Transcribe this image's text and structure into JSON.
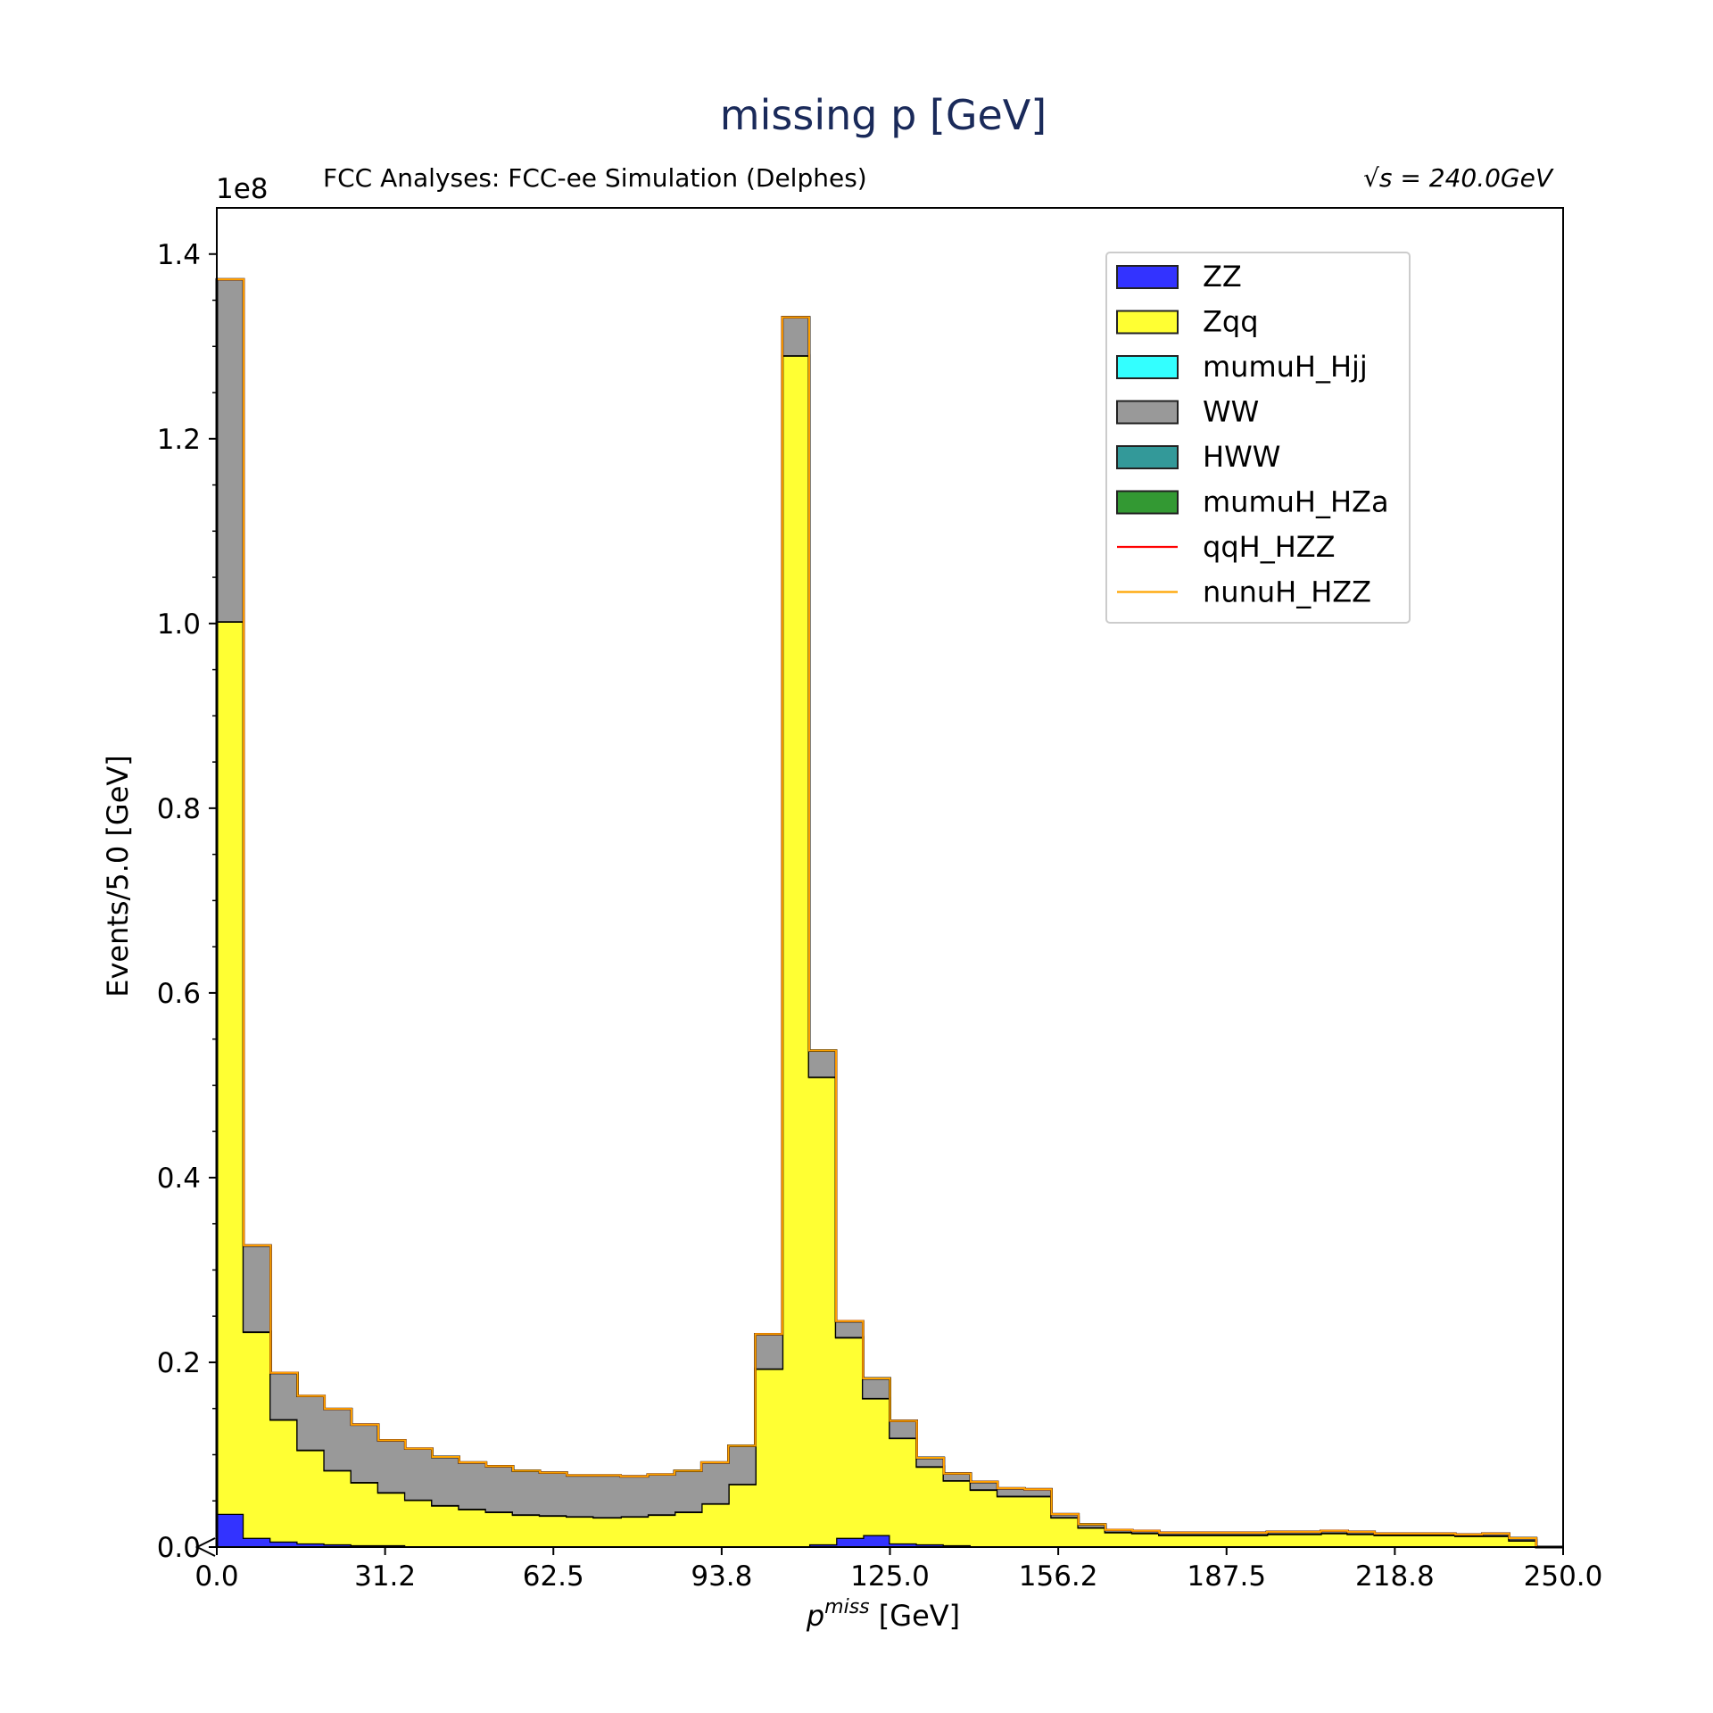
{
  "chart_data": {
    "type": "bar",
    "title": "missing p [GeV]",
    "subtitle_left": "FCC Analyses: FCC-ee Simulation (Delphes)",
    "subtitle_right": "√s = 240.0GeV",
    "xlabel": "p^miss [GeV]",
    "xlabel_main": "p",
    "xlabel_sup": "miss",
    "xlabel_unit": " [GeV]",
    "ylabel": "Events/5.0 [GeV]",
    "y_offset_text": "1e8",
    "stacked": true,
    "bin_width": 5.0,
    "xlim": [
      0.0,
      250.0
    ],
    "ylim": [
      0.0,
      1.45
    ],
    "x_ticks": [
      "0.0",
      "31.2",
      "62.5",
      "93.8",
      "125.0",
      "156.2",
      "187.5",
      "218.8",
      "250.0"
    ],
    "x_tick_values": [
      0.0,
      31.25,
      62.5,
      93.75,
      125.0,
      156.25,
      187.5,
      218.75,
      250.0
    ],
    "y_ticks": [
      "0.0",
      "0.2",
      "0.4",
      "0.6",
      "0.8",
      "1.0",
      "1.2",
      "1.4"
    ],
    "y_tick_values": [
      0.0,
      0.2,
      0.4,
      0.6,
      0.8,
      1.0,
      1.2,
      1.4
    ],
    "bin_edges": [
      0,
      5,
      10,
      15,
      20,
      25,
      30,
      35,
      40,
      45,
      50,
      55,
      60,
      65,
      70,
      75,
      80,
      85,
      90,
      95,
      100,
      105,
      110,
      115,
      120,
      125,
      130,
      135,
      140,
      145,
      150,
      155,
      160,
      165,
      170,
      175,
      180,
      185,
      190,
      195,
      200,
      205,
      210,
      215,
      220,
      225,
      230,
      235,
      240,
      245,
      250
    ],
    "legend_position": "upper right",
    "series": [
      {
        "name": "ZZ",
        "color": "#3333ff",
        "style": "fill",
        "values": [
          0.036,
          0.01,
          0.006,
          0.004,
          0.003,
          0.002,
          0.002,
          0.001,
          0.001,
          0.001,
          0.001,
          0.001,
          0.001,
          0.001,
          0.001,
          0.001,
          0.001,
          0.001,
          0.001,
          0.001,
          0.001,
          0.001,
          0.003,
          0.01,
          0.013,
          0.004,
          0.003,
          0.002,
          0.001,
          0.001,
          0.001,
          0.001,
          0.001,
          0.001,
          0.001,
          0.001,
          0.001,
          0.001,
          0.001,
          0.001,
          0.001,
          0.001,
          0.001,
          0.001,
          0.001,
          0.001,
          0.001,
          0.001,
          0.001,
          0.0
        ]
      },
      {
        "name": "Zqq",
        "color": "#ffff33",
        "style": "fill",
        "values": [
          0.966,
          0.223,
          0.132,
          0.101,
          0.08,
          0.068,
          0.057,
          0.05,
          0.044,
          0.04,
          0.037,
          0.034,
          0.033,
          0.032,
          0.031,
          0.032,
          0.034,
          0.037,
          0.046,
          0.067,
          0.192,
          1.289,
          0.506,
          0.217,
          0.148,
          0.114,
          0.084,
          0.07,
          0.061,
          0.054,
          0.054,
          0.031,
          0.02,
          0.015,
          0.014,
          0.012,
          0.012,
          0.012,
          0.012,
          0.013,
          0.013,
          0.014,
          0.013,
          0.012,
          0.012,
          0.012,
          0.011,
          0.011,
          0.006,
          0.0
        ]
      },
      {
        "name": "mumuH_Hjj",
        "color": "#33ffff",
        "style": "fill",
        "values": [
          0.0005,
          0.0005,
          0.0005,
          0.0005,
          0.0005,
          0.0005,
          0.0005,
          0.0005,
          0.0005,
          0.0005,
          0.0005,
          0.0005,
          0.0005,
          0.0005,
          0.0005,
          0.0005,
          0.0005,
          0.0005,
          0.0005,
          0.0005,
          0.0005,
          0.0005,
          0.0005,
          0.0005,
          0.0005,
          0.0005,
          0.0005,
          0.0005,
          0.0005,
          0.0005,
          0.0005,
          0.0005,
          0.0005,
          0.0005,
          0.0005,
          0.0005,
          0.0005,
          0.0005,
          0.0005,
          0.0005,
          0.0005,
          0.0005,
          0.0005,
          0.0005,
          0.0005,
          0.0005,
          0.0005,
          0.0005,
          0.0005,
          0.0
        ]
      },
      {
        "name": "WW",
        "color": "#999999",
        "style": "fill",
        "values": [
          0.37,
          0.093,
          0.05,
          0.058,
          0.066,
          0.062,
          0.056,
          0.055,
          0.052,
          0.05,
          0.049,
          0.047,
          0.046,
          0.044,
          0.045,
          0.043,
          0.043,
          0.044,
          0.044,
          0.041,
          0.037,
          0.041,
          0.028,
          0.017,
          0.021,
          0.018,
          0.009,
          0.007,
          0.008,
          0.008,
          0.007,
          0.003,
          0.003,
          0.002,
          0.002,
          0.002,
          0.002,
          0.002,
          0.002,
          0.002,
          0.002,
          0.002,
          0.002,
          0.001,
          0.001,
          0.001,
          0.001,
          0.002,
          0.002,
          0.0
        ]
      },
      {
        "name": "HWW",
        "color": "#339999",
        "style": "fill",
        "values": [
          0.0001,
          0.0001,
          0.0001,
          0.0001,
          0.0001,
          0.0001,
          0.0001,
          0.0001,
          0.0001,
          0.0001,
          0.0001,
          0.0001,
          0.0001,
          0.0001,
          0.0001,
          0.0001,
          0.0001,
          0.0001,
          0.0001,
          0.0001,
          0.0001,
          0.0001,
          0.0001,
          0.0001,
          0.0001,
          0.0001,
          0.0001,
          0.0001,
          0.0001,
          0.0001,
          0.0001,
          0.0001,
          0.0001,
          0.0001,
          0.0001,
          0.0001,
          0.0001,
          0.0001,
          0.0001,
          0.0001,
          0.0001,
          0.0001,
          0.0001,
          0.0001,
          0.0001,
          0.0001,
          0.0001,
          0.0001,
          0.0001,
          0.0
        ]
      },
      {
        "name": "mumuH_HZa",
        "color": "#339933",
        "style": "fill",
        "values": [
          0.0,
          0.0,
          0.0,
          0.0,
          0.0,
          0.0,
          0.0,
          0.0,
          0.0,
          0.0,
          0.0,
          0.0,
          0.0,
          0.0,
          0.0,
          0.0,
          0.0,
          0.0,
          0.0,
          0.0,
          0.0,
          0.0,
          0.0,
          0.0,
          0.0,
          0.0,
          0.0,
          0.0,
          0.0,
          0.0,
          0.0,
          0.0,
          0.0,
          0.0,
          0.0,
          0.0,
          0.0,
          0.0,
          0.0,
          0.0,
          0.0,
          0.0,
          0.0,
          0.0,
          0.0,
          0.0,
          0.0,
          0.0,
          0.0,
          0.0
        ]
      },
      {
        "name": "qqH_HZZ",
        "color": "#ff0000",
        "style": "line",
        "values": [
          0.0,
          0.0,
          0.0,
          0.0,
          0.0,
          0.0,
          0.0,
          0.0,
          0.0,
          0.0,
          0.0,
          0.0,
          0.0,
          0.0,
          0.0,
          0.0,
          0.0,
          0.0,
          0.0,
          0.0,
          0.0,
          0.0,
          0.0,
          0.0,
          0.0,
          0.0,
          0.0,
          0.0,
          0.0,
          0.0,
          0.0,
          0.0,
          0.0,
          0.0,
          0.0,
          0.0,
          0.0,
          0.0,
          0.0,
          0.0,
          0.0,
          0.0,
          0.0,
          0.0,
          0.0,
          0.0,
          0.0,
          0.0,
          0.0,
          0.0
        ]
      },
      {
        "name": "nunuH_HZZ",
        "color": "#ffa500",
        "style": "line",
        "values": [
          0.0,
          0.0,
          0.0,
          0.0,
          0.0,
          0.0,
          0.0,
          0.0,
          0.0,
          0.0,
          0.0,
          0.0,
          0.0,
          0.0,
          0.0,
          0.0,
          0.0,
          0.0,
          0.0,
          0.0,
          0.0,
          0.0,
          0.0,
          0.0,
          0.0,
          0.0,
          0.0,
          0.0,
          0.0,
          0.0,
          0.0,
          0.0,
          0.0,
          0.0,
          0.0,
          0.0,
          0.0,
          0.0,
          0.0,
          0.0,
          0.0,
          0.0,
          0.0,
          0.0,
          0.0,
          0.0,
          0.0,
          0.0,
          0.0,
          0.0
        ]
      }
    ]
  }
}
